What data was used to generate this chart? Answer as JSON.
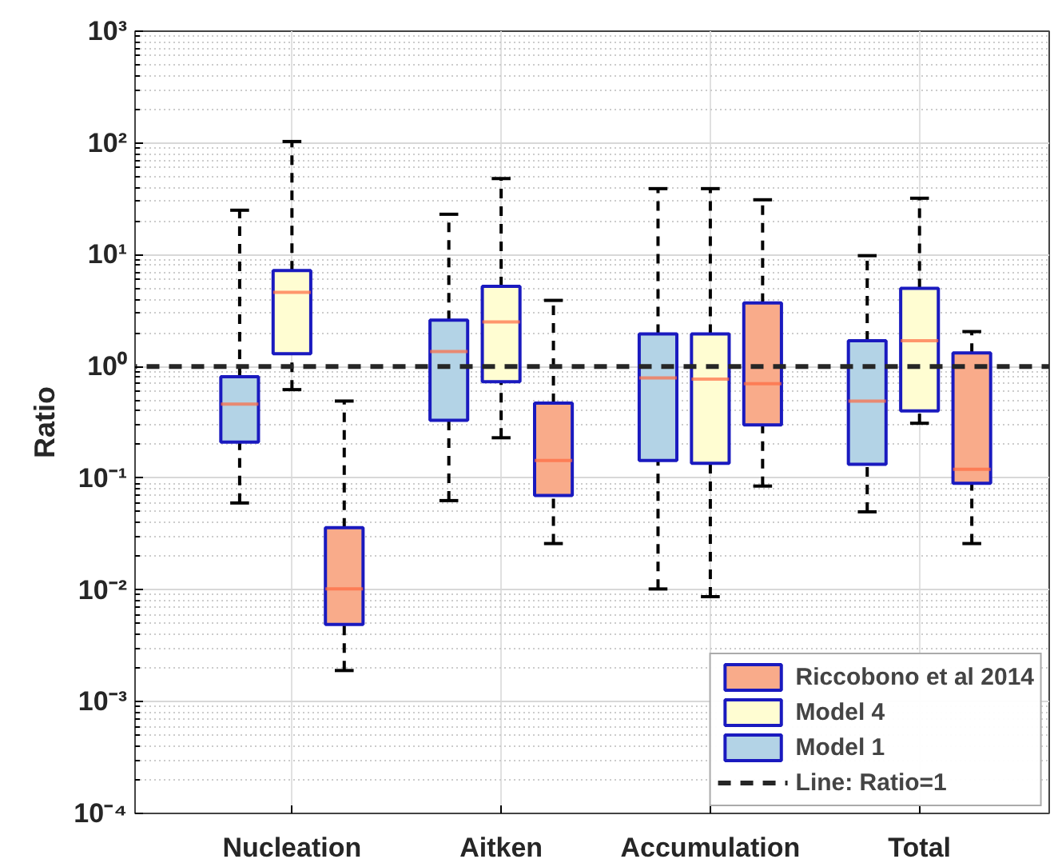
{
  "chart_data": {
    "type": "box",
    "ylabel": "Ratio",
    "categories": [
      "Nucleation",
      "Aitken",
      "Accumulation",
      "Total"
    ],
    "series": [
      {
        "name": "Model 1",
        "color": "#b3d3e6",
        "boxes": [
          {
            "low": 0.06,
            "q1": 0.21,
            "median": 0.46,
            "q3": 0.81,
            "high": 25
          },
          {
            "low": 0.063,
            "q1": 0.33,
            "median": 1.36,
            "q3": 2.6,
            "high": 23
          },
          {
            "low": 0.0102,
            "q1": 0.144,
            "median": 0.79,
            "q3": 1.95,
            "high": 39
          },
          {
            "low": 0.05,
            "q1": 0.133,
            "median": 0.49,
            "q3": 1.7,
            "high": 9.8
          }
        ]
      },
      {
        "name": "Model 4",
        "color": "#fffdd2",
        "boxes": [
          {
            "low": 0.62,
            "q1": 1.3,
            "median": 4.6,
            "q3": 7.2,
            "high": 103
          },
          {
            "low": 0.23,
            "q1": 0.73,
            "median": 2.5,
            "q3": 5.2,
            "high": 48
          },
          {
            "low": 0.0087,
            "q1": 0.136,
            "median": 0.77,
            "q3": 1.95,
            "high": 39
          },
          {
            "low": 0.31,
            "q1": 0.4,
            "median": 1.7,
            "q3": 5.0,
            "high": 32
          }
        ]
      },
      {
        "name": "Riccobono et al 2014",
        "color": "#f9ab8a",
        "boxes": [
          {
            "low": 0.0019,
            "q1": 0.0049,
            "median": 0.0102,
            "q3": 0.036,
            "high": 0.49
          },
          {
            "low": 0.026,
            "q1": 0.07,
            "median": 0.144,
            "q3": 0.47,
            "high": 3.9
          },
          {
            "low": 0.085,
            "q1": 0.3,
            "median": 0.7,
            "q3": 3.7,
            "high": 31
          },
          {
            "low": 0.026,
            "q1": 0.09,
            "median": 0.12,
            "q3": 1.32,
            "high": 2.05
          }
        ]
      }
    ],
    "log": "y",
    "ylim": [
      0.0001,
      1000
    ],
    "yticks": [
      {
        "value": 0.0001,
        "label": "10⁻⁴"
      },
      {
        "value": 0.001,
        "label": "10⁻³"
      },
      {
        "value": 0.01,
        "label": "10⁻²"
      },
      {
        "value": 0.1,
        "label": "10⁻¹"
      },
      {
        "value": 1,
        "label": "10⁰"
      },
      {
        "value": 10,
        "label": "10¹"
      },
      {
        "value": 100,
        "label": "10²"
      },
      {
        "value": 1000,
        "label": "10³"
      }
    ],
    "ref_lines": [
      {
        "axis": "y",
        "value": 1,
        "label": "Line: Ratio=1",
        "color": "#262626",
        "line_style": "dashed"
      }
    ],
    "grid": true,
    "legend": "bottom right"
  }
}
